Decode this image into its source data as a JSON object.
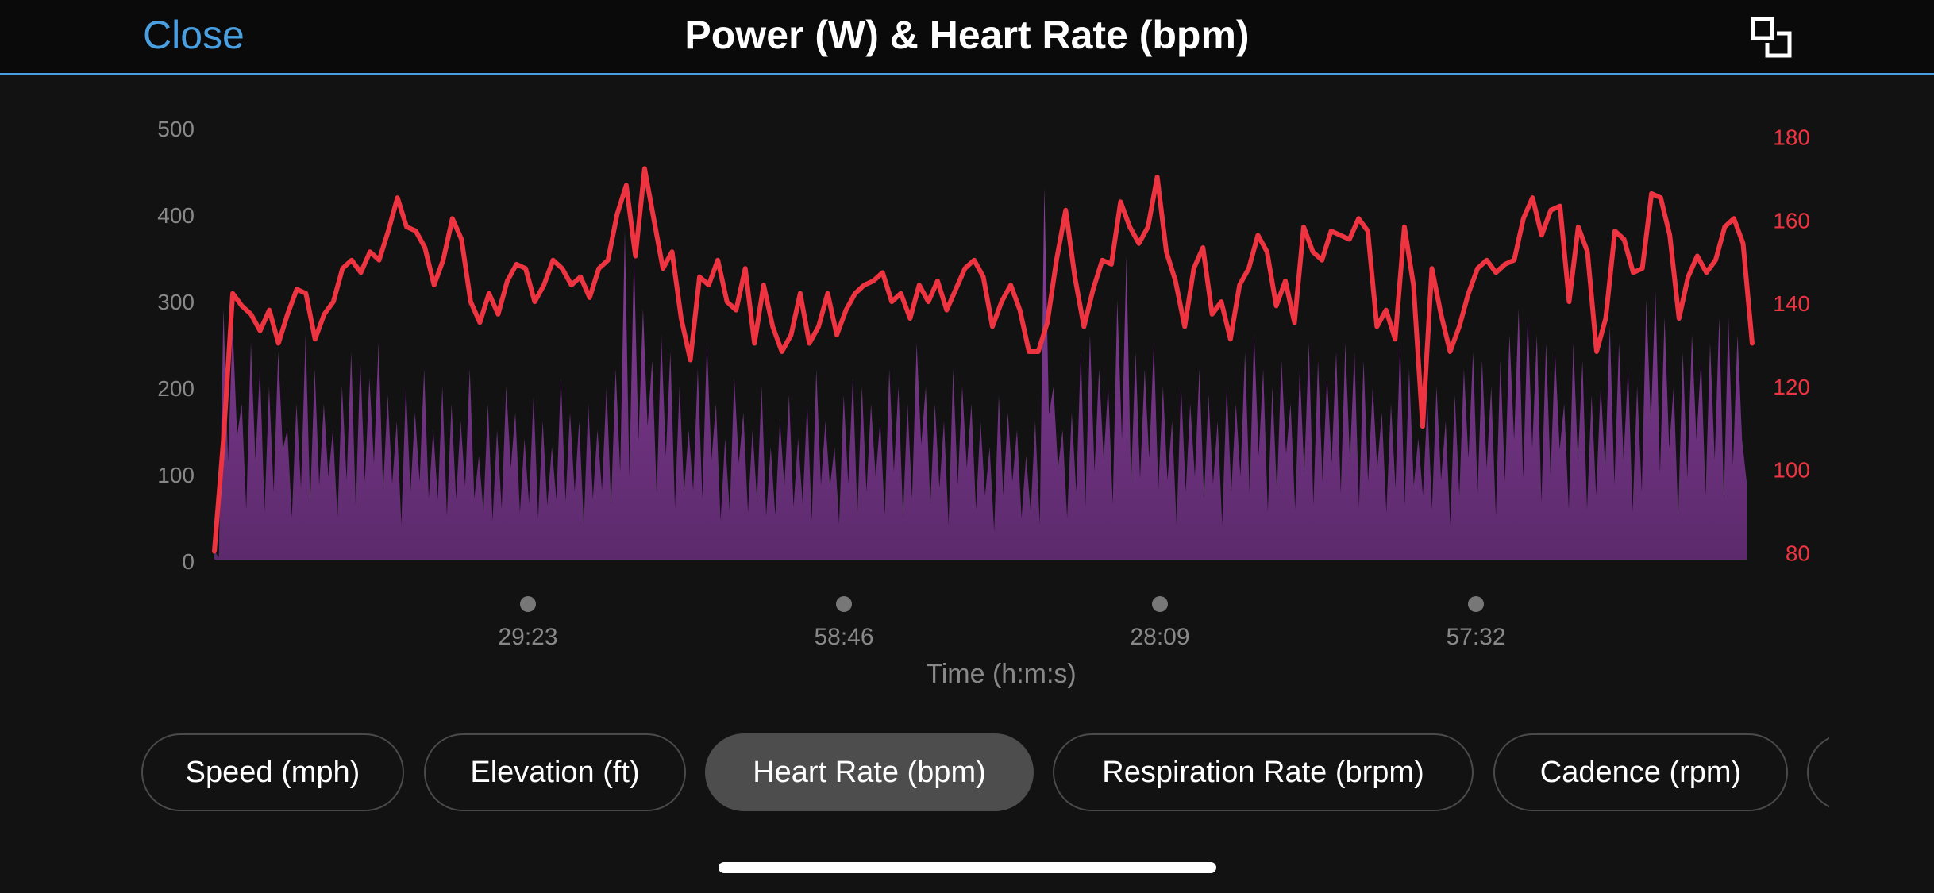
{
  "header": {
    "close_label": "Close",
    "title": "Power (W) & Heart Rate (bpm)",
    "expand_icon": "expand-icon"
  },
  "colors": {
    "background": "#121212",
    "accent": "#4a9fe0",
    "heart_rate": "#ee3440",
    "power_fill": "#8a3f9c"
  },
  "tabs": [
    {
      "label": "Speed (mph)",
      "active": false
    },
    {
      "label": "Elevation (ft)",
      "active": false
    },
    {
      "label": "Heart Rate (bpm)",
      "active": true
    },
    {
      "label": "Respiration Rate (brpm)",
      "active": false
    },
    {
      "label": "Cadence (rpm)",
      "active": false
    }
  ],
  "chart_data": {
    "type": "area",
    "title": "Power (W) & Heart Rate (bpm)",
    "xlabel": "Time (h:m:s)",
    "x_ticks": [
      "29:23",
      "58:46",
      "28:09",
      "57:32"
    ],
    "y_left": {
      "ticks": [
        0,
        100,
        200,
        300,
        400,
        500
      ],
      "range": [
        0,
        500
      ],
      "color": "#888888"
    },
    "y_right": {
      "ticks": [
        80,
        100,
        120,
        140,
        160,
        180
      ],
      "range": [
        78,
        182
      ],
      "color": "#ee3440"
    },
    "grid": false,
    "series": [
      {
        "kind": "line",
        "axis": "right",
        "values": [
          80,
          107,
          142,
          139,
          137,
          133,
          138,
          130,
          137,
          143,
          142,
          131,
          137,
          140,
          148,
          150,
          147,
          152,
          150,
          157,
          165,
          158,
          157,
          153,
          144,
          150,
          160,
          155,
          140,
          135,
          142,
          137,
          145,
          149,
          148,
          140,
          144,
          150,
          148,
          144,
          146,
          141,
          148,
          150,
          161,
          168,
          151,
          172,
          160,
          148,
          152,
          136,
          126,
          146,
          144,
          150,
          140,
          138,
          148,
          130,
          144,
          134,
          128,
          132,
          142,
          130,
          134,
          142,
          132,
          138,
          142,
          144,
          145,
          147,
          140,
          142,
          136,
          144,
          140,
          145,
          138,
          143,
          148,
          150,
          146,
          134,
          140,
          144,
          138,
          128,
          128,
          135,
          150,
          162,
          146,
          134,
          143,
          150,
          149,
          164,
          158,
          154,
          158,
          170,
          152,
          145,
          134,
          148,
          153,
          137,
          140,
          131,
          144,
          148,
          156,
          152,
          139,
          145,
          135,
          158,
          152,
          150,
          157,
          156,
          155,
          160,
          157,
          134,
          138,
          131,
          158,
          144,
          110,
          148,
          137,
          128,
          134,
          142,
          148,
          150,
          147,
          149,
          150,
          160,
          165,
          156,
          162,
          163,
          140,
          158,
          152,
          128,
          136,
          157,
          155,
          147,
          148,
          166,
          165,
          156,
          136,
          146,
          151,
          147,
          150,
          158,
          160,
          154,
          130
        ]
      },
      {
        "kind": "area",
        "axis": "left",
        "values": [
          10,
          290,
          270,
          180,
          250,
          220,
          200,
          240,
          150,
          180,
          260,
          220,
          180,
          150,
          200,
          240,
          230,
          210,
          250,
          190,
          160,
          200,
          170,
          220,
          150,
          200,
          180,
          160,
          220,
          120,
          180,
          150,
          200,
          170,
          140,
          190,
          160,
          130,
          210,
          170,
          160,
          180,
          150,
          200,
          220,
          380,
          350,
          290,
          230,
          260,
          240,
          200,
          150,
          220,
          250,
          180,
          140,
          210,
          170,
          150,
          200,
          130,
          160,
          190,
          140,
          180,
          220,
          160,
          130,
          190,
          210,
          200,
          180,
          160,
          220,
          200,
          180,
          250,
          200,
          180,
          160,
          220,
          200,
          180,
          160,
          130,
          190,
          170,
          150,
          120,
          160,
          430,
          200,
          150,
          170,
          240,
          260,
          220,
          200,
          300,
          350,
          240,
          220,
          250,
          200,
          160,
          200,
          180,
          220,
          190,
          160,
          200,
          180,
          240,
          260,
          220,
          200,
          230,
          180,
          220,
          250,
          230,
          210,
          240,
          250,
          240,
          230,
          200,
          170,
          180,
          250,
          220,
          140,
          180,
          200,
          160,
          190,
          220,
          240,
          230,
          200,
          230,
          260,
          290,
          280,
          260,
          250,
          240,
          180,
          250,
          230,
          190,
          200,
          270,
          250,
          220,
          200,
          300,
          310,
          280,
          200,
          240,
          260,
          230,
          250,
          280,
          280,
          260,
          90
        ]
      }
    ]
  }
}
